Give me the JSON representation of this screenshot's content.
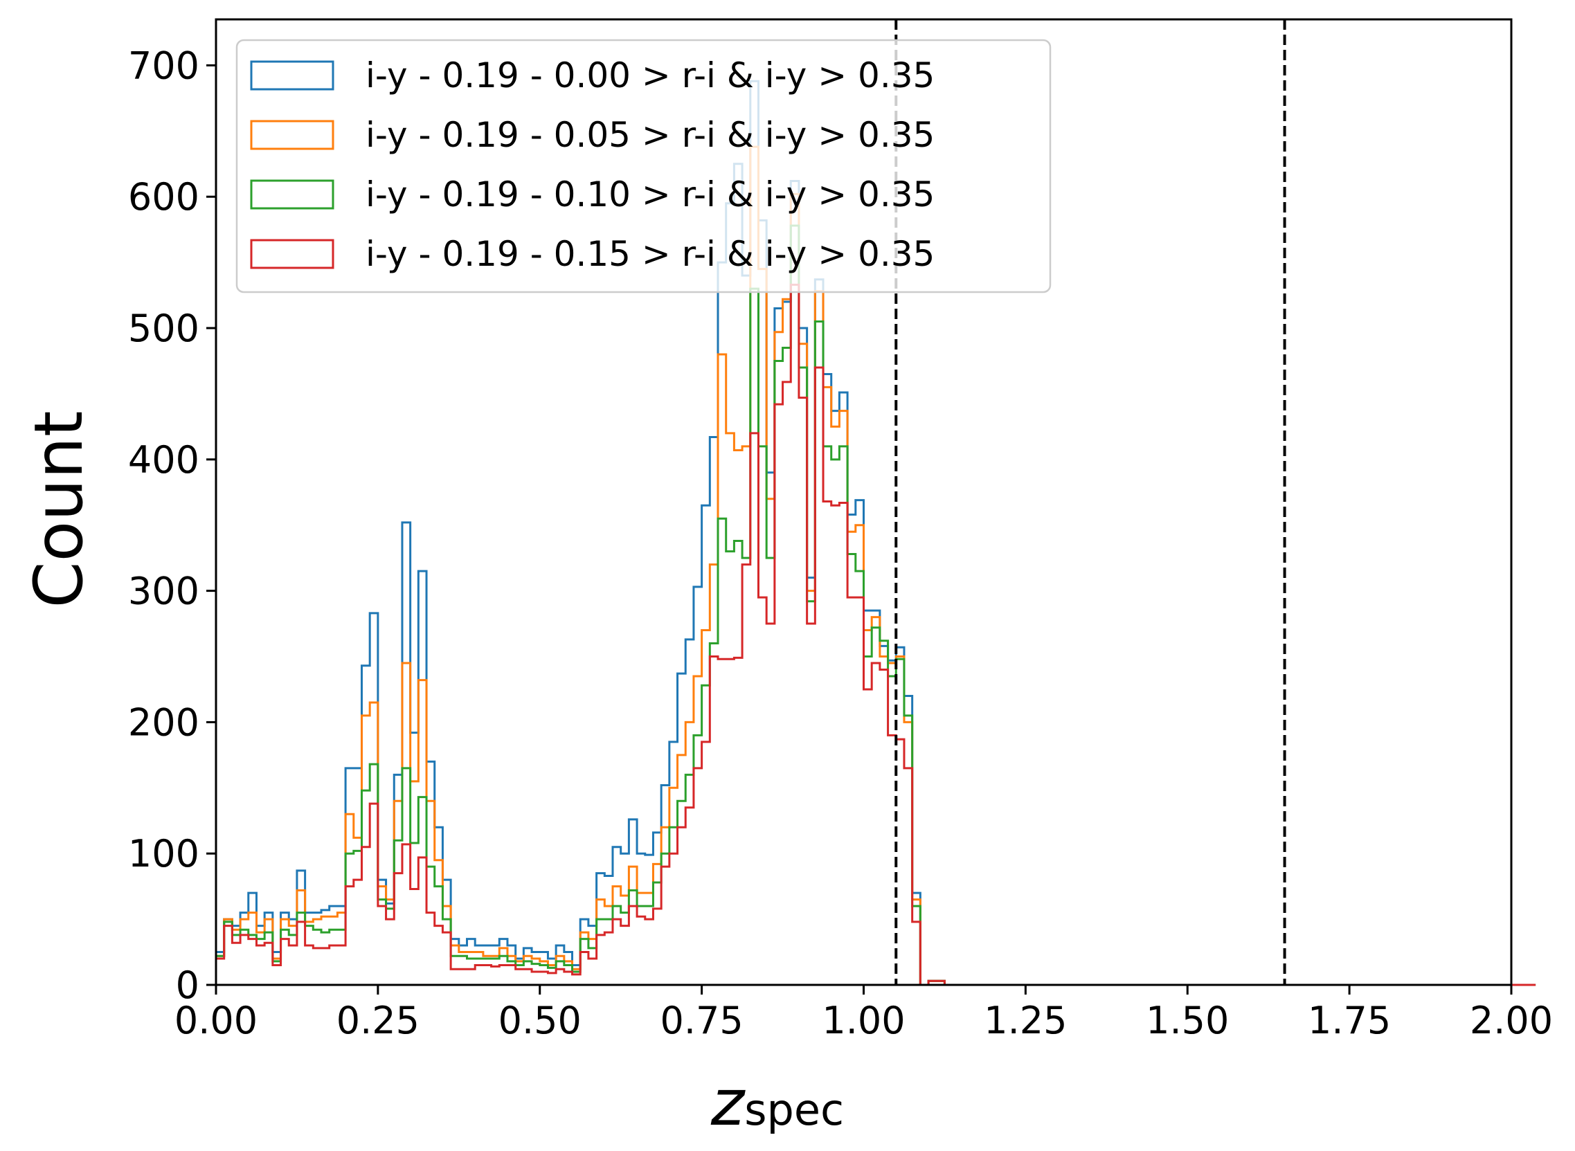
{
  "chart_data": {
    "type": "histogram",
    "xlabel_main": "z",
    "xlabel_sub": "spec",
    "ylabel": "Count",
    "xlim": [
      0,
      2
    ],
    "ylim": [
      0,
      735
    ],
    "x_ticks": [
      "0.00",
      "0.25",
      "0.50",
      "0.75",
      "1.00",
      "1.25",
      "1.50",
      "1.75",
      "2.00"
    ],
    "y_ticks": [
      "0",
      "100",
      "200",
      "300",
      "400",
      "500",
      "600",
      "700"
    ],
    "legend_position": "upper-left",
    "vlines": [
      1.05,
      1.65
    ],
    "vline_style": "dashed",
    "bin_width": 0.0125,
    "bin_start": 0.0,
    "series": [
      {
        "name": "i-y - 0.19 - 0.00 > r-i & i-y > 0.35",
        "color": "#1f77b4",
        "values": [
          25,
          50,
          45,
          55,
          70,
          45,
          55,
          25,
          55,
          50,
          87,
          55,
          55,
          57,
          60,
          60,
          165,
          165,
          243,
          283,
          80,
          62,
          160,
          352,
          192,
          315,
          170,
          120,
          80,
          35,
          30,
          35,
          30,
          30,
          30,
          35,
          30,
          20,
          28,
          25,
          25,
          20,
          30,
          25,
          15,
          50,
          45,
          85,
          83,
          105,
          100,
          126,
          100,
          99,
          116,
          152,
          185,
          237,
          263,
          303,
          365,
          417,
          550,
          595,
          625,
          540,
          688,
          582,
          390,
          515,
          520,
          612,
          500,
          310,
          537,
          465,
          437,
          451,
          358,
          369,
          285,
          285,
          258,
          247,
          257,
          220,
          70,
          0,
          3,
          3,
          0,
          0,
          0,
          0,
          0,
          0,
          0,
          0,
          0,
          0,
          0,
          0,
          0,
          0,
          0,
          0,
          0,
          0,
          0,
          0,
          0,
          0,
          0,
          0,
          0,
          0,
          0,
          0,
          0,
          0,
          0,
          0,
          0,
          0,
          0,
          0,
          0,
          0,
          0,
          0,
          0,
          0,
          0,
          0,
          0,
          0,
          0,
          0,
          0,
          0,
          0,
          0,
          0,
          0,
          0,
          0,
          0,
          0,
          0,
          0,
          0,
          0,
          0,
          0,
          0,
          0,
          0,
          0,
          0,
          0,
          0,
          0,
          0
        ]
      },
      {
        "name": "i-y - 0.19 - 0.05 > r-i & i-y > 0.35",
        "color": "#ff7f0e",
        "values": [
          22,
          50,
          42,
          50,
          55,
          40,
          50,
          20,
          50,
          45,
          72,
          48,
          50,
          52,
          52,
          55,
          130,
          112,
          205,
          215,
          75,
          65,
          140,
          245,
          155,
          232,
          140,
          95,
          60,
          30,
          25,
          25,
          25,
          22,
          22,
          28,
          22,
          18,
          22,
          20,
          18,
          15,
          22,
          18,
          12,
          40,
          35,
          65,
          60,
          75,
          68,
          90,
          70,
          70,
          92,
          120,
          150,
          175,
          200,
          235,
          270,
          320,
          480,
          420,
          407,
          410,
          638,
          545,
          370,
          497,
          522,
          602,
          488,
          300,
          528,
          455,
          425,
          437,
          345,
          350,
          270,
          280,
          250,
          245,
          250,
          200,
          65,
          0,
          3,
          3,
          0,
          0,
          0,
          0,
          0,
          0,
          0,
          0,
          0,
          0,
          0,
          0,
          0,
          0,
          0,
          0,
          0,
          0,
          0,
          0,
          0,
          0,
          0,
          0,
          0,
          0,
          0,
          0,
          0,
          0,
          0,
          0,
          0,
          0,
          0,
          0,
          0,
          0,
          0,
          0,
          0,
          0,
          0,
          0,
          0,
          0,
          0,
          0,
          0,
          0,
          0,
          0,
          0,
          0,
          0,
          0,
          0,
          0,
          0,
          0,
          0,
          0,
          0,
          0,
          0,
          0,
          0,
          0,
          0,
          0,
          0,
          0,
          0
        ]
      },
      {
        "name": "i-y - 0.19 - 0.10 > r-i & i-y > 0.35",
        "color": "#2ca02c",
        "values": [
          22,
          48,
          38,
          42,
          38,
          35,
          40,
          18,
          42,
          38,
          55,
          45,
          42,
          40,
          42,
          42,
          100,
          102,
          148,
          168,
          65,
          58,
          110,
          165,
          108,
          143,
          90,
          75,
          50,
          22,
          22,
          20,
          20,
          20,
          20,
          22,
          18,
          15,
          18,
          16,
          15,
          13,
          18,
          15,
          10,
          35,
          28,
          50,
          50,
          60,
          55,
          72,
          60,
          60,
          78,
          100,
          120,
          140,
          160,
          190,
          228,
          260,
          355,
          330,
          338,
          325,
          530,
          410,
          325,
          475,
          485,
          578,
          470,
          292,
          505,
          410,
          400,
          410,
          328,
          315,
          250,
          272,
          262,
          235,
          248,
          205,
          60,
          0,
          3,
          3,
          0,
          0,
          0,
          0,
          0,
          0,
          0,
          0,
          0,
          0,
          0,
          0,
          0,
          0,
          0,
          0,
          0,
          0,
          0,
          0,
          0,
          0,
          0,
          0,
          0,
          0,
          0,
          0,
          0,
          0,
          0,
          0,
          0,
          0,
          0,
          0,
          0,
          0,
          0,
          0,
          0,
          0,
          0,
          0,
          0,
          0,
          0,
          0,
          0,
          0,
          0,
          0,
          0,
          0,
          0,
          0,
          0,
          0,
          0,
          0,
          0,
          0,
          0,
          0,
          0,
          0,
          0,
          0,
          0,
          0,
          0,
          0,
          0
        ]
      },
      {
        "name": "i-y - 0.19 - 0.15 > r-i & i-y > 0.35",
        "color": "#d62728",
        "values": [
          20,
          45,
          32,
          38,
          35,
          30,
          32,
          15,
          35,
          30,
          48,
          30,
          28,
          28,
          30,
          30,
          75,
          80,
          105,
          138,
          60,
          50,
          85,
          107,
          73,
          97,
          55,
          45,
          40,
          12,
          12,
          12,
          15,
          15,
          14,
          15,
          15,
          12,
          12,
          10,
          10,
          9,
          12,
          10,
          8,
          25,
          20,
          38,
          40,
          50,
          45,
          60,
          52,
          50,
          58,
          90,
          100,
          120,
          135,
          165,
          185,
          250,
          248,
          248,
          249,
          320,
          420,
          295,
          275,
          442,
          459,
          533,
          447,
          275,
          470,
          368,
          365,
          367,
          295,
          295,
          225,
          245,
          240,
          190,
          187,
          165,
          48,
          0,
          3,
          3,
          0,
          0,
          0,
          0,
          0,
          0,
          0,
          0,
          0,
          0,
          0,
          0,
          0,
          0,
          0,
          0,
          0,
          0,
          0,
          0,
          0,
          0,
          0,
          0,
          0,
          0,
          0,
          0,
          0,
          0,
          0,
          0,
          0,
          0,
          0,
          0,
          0,
          0,
          0,
          0,
          0,
          0,
          0,
          0,
          0,
          0,
          0,
          0,
          0,
          0,
          0,
          0,
          0,
          0,
          0,
          0,
          0,
          0,
          0,
          0,
          0,
          0,
          0,
          0,
          0,
          0,
          0,
          0,
          0,
          0,
          0,
          0,
          0
        ]
      }
    ]
  }
}
